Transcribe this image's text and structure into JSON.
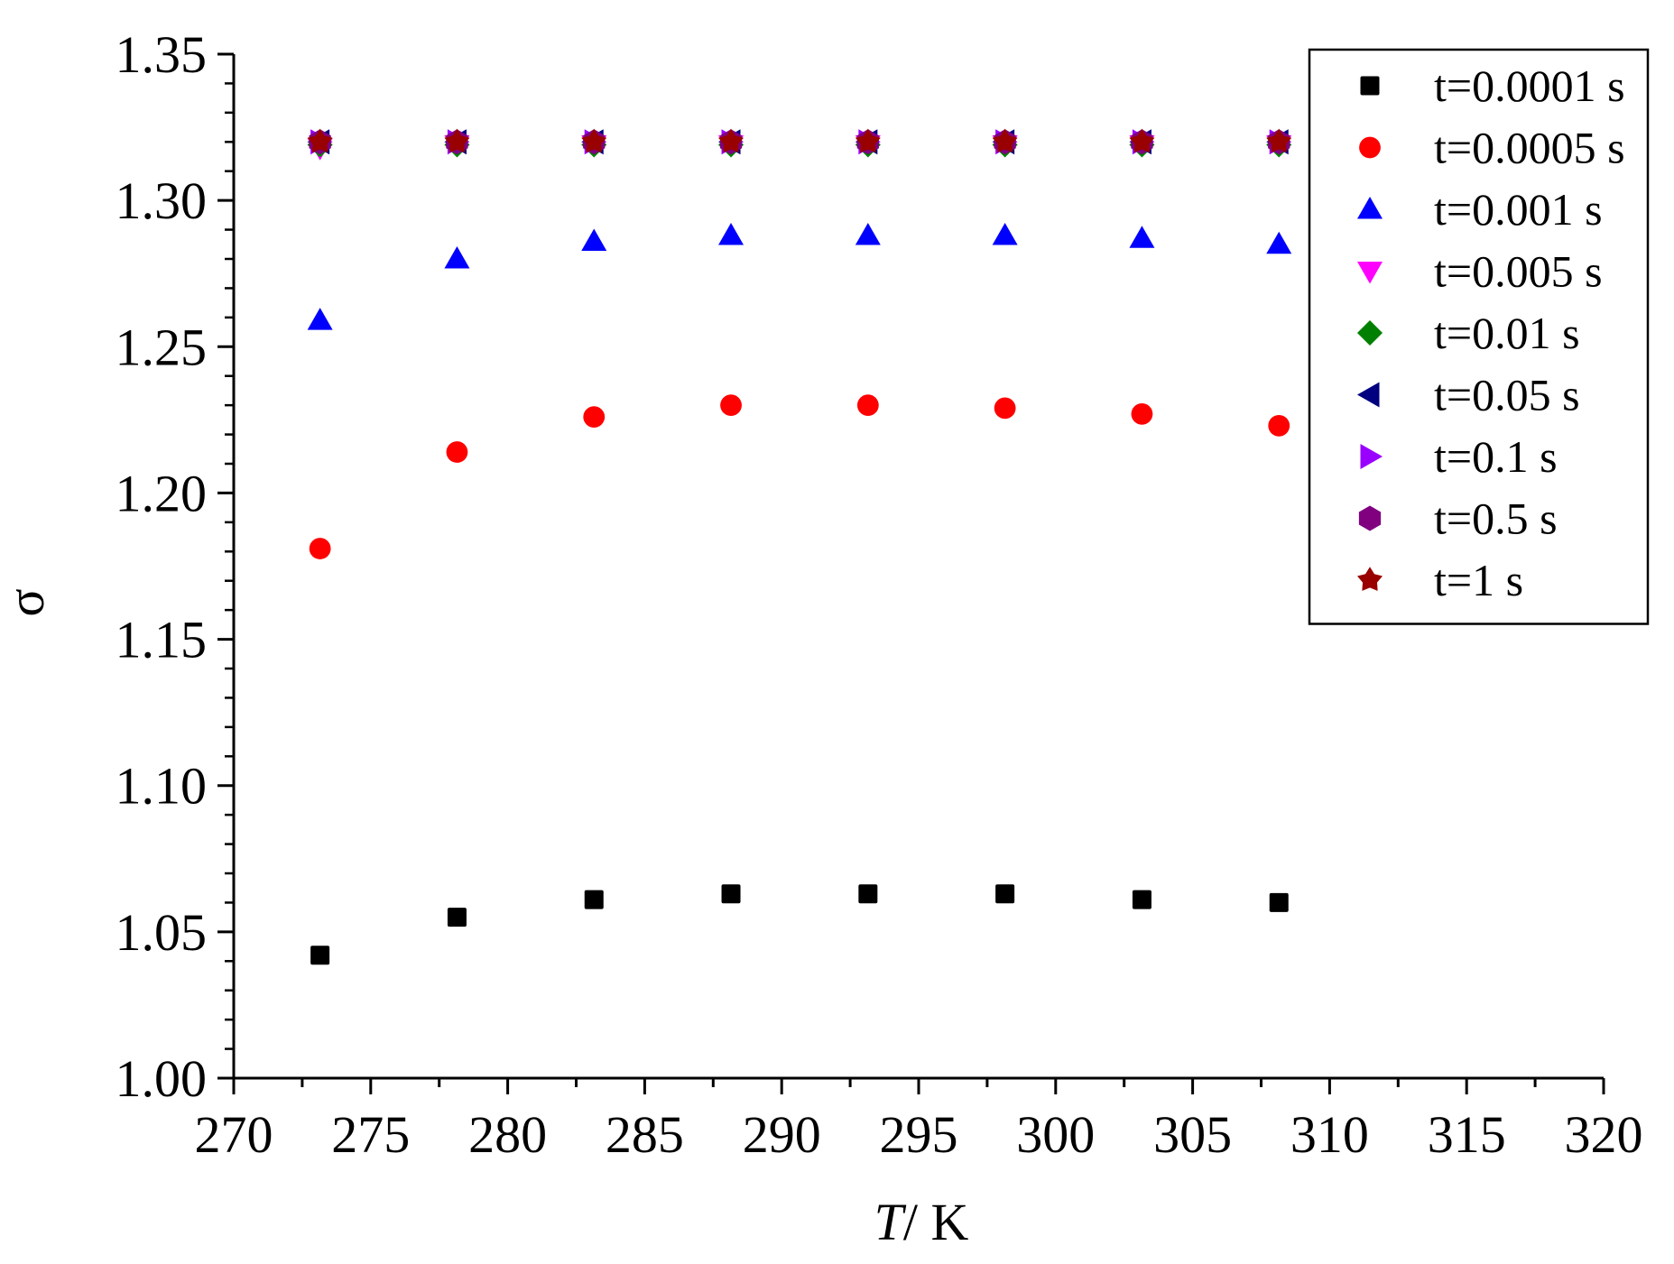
{
  "chart_data": {
    "type": "scatter",
    "title": "",
    "xlabel": {
      "italic": "T",
      "rest": "/ K"
    },
    "ylabel": "σ",
    "xlim": [
      270,
      320
    ],
    "ylim": [
      1.0,
      1.35
    ],
    "xticks": [
      270,
      275,
      280,
      285,
      290,
      295,
      300,
      305,
      310,
      315,
      320
    ],
    "yticks": [
      "1.00",
      "1.05",
      "1.10",
      "1.15",
      "1.20",
      "1.25",
      "1.30",
      "1.35"
    ],
    "grid": false,
    "legend_position": "top-right",
    "x": [
      273.15,
      278.15,
      283.15,
      288.15,
      293.15,
      298.15,
      303.15,
      308.15
    ],
    "series": [
      {
        "name": "t=0.0001 s",
        "marker": "square",
        "color": "#000000",
        "values": [
          1.042,
          1.055,
          1.061,
          1.063,
          1.063,
          1.063,
          1.061,
          1.06
        ]
      },
      {
        "name": "t=0.0005 s",
        "marker": "circle",
        "color": "#ff0000",
        "values": [
          1.181,
          1.214,
          1.226,
          1.23,
          1.23,
          1.229,
          1.227,
          1.223
        ]
      },
      {
        "name": "t=0.001 s",
        "marker": "triangle-up",
        "color": "#0000ff",
        "values": [
          1.259,
          1.28,
          1.286,
          1.288,
          1.288,
          1.288,
          1.287,
          1.285
        ]
      },
      {
        "name": "t=0.005 s",
        "marker": "triangle-down",
        "color": "#ff00ff",
        "values": [
          1.318,
          1.319,
          1.319,
          1.319,
          1.319,
          1.319,
          1.319,
          1.319
        ]
      },
      {
        "name": "t=0.01 s",
        "marker": "diamond",
        "color": "#008000",
        "values": [
          1.319,
          1.319,
          1.319,
          1.319,
          1.319,
          1.319,
          1.319,
          1.319
        ]
      },
      {
        "name": "t=0.05 s",
        "marker": "triangle-left",
        "color": "#000080",
        "values": [
          1.32,
          1.32,
          1.32,
          1.32,
          1.32,
          1.32,
          1.32,
          1.32
        ]
      },
      {
        "name": "t=0.1 s",
        "marker": "triangle-right",
        "color": "#9900ff",
        "values": [
          1.32,
          1.32,
          1.32,
          1.32,
          1.32,
          1.32,
          1.32,
          1.32
        ]
      },
      {
        "name": "t=0.5 s",
        "marker": "hexagon",
        "color": "#800080",
        "values": [
          1.32,
          1.32,
          1.32,
          1.32,
          1.32,
          1.32,
          1.32,
          1.32
        ]
      },
      {
        "name": "t=1 s",
        "marker": "star",
        "color": "#990000",
        "values": [
          1.32,
          1.32,
          1.32,
          1.32,
          1.32,
          1.32,
          1.32,
          1.32
        ]
      }
    ]
  }
}
